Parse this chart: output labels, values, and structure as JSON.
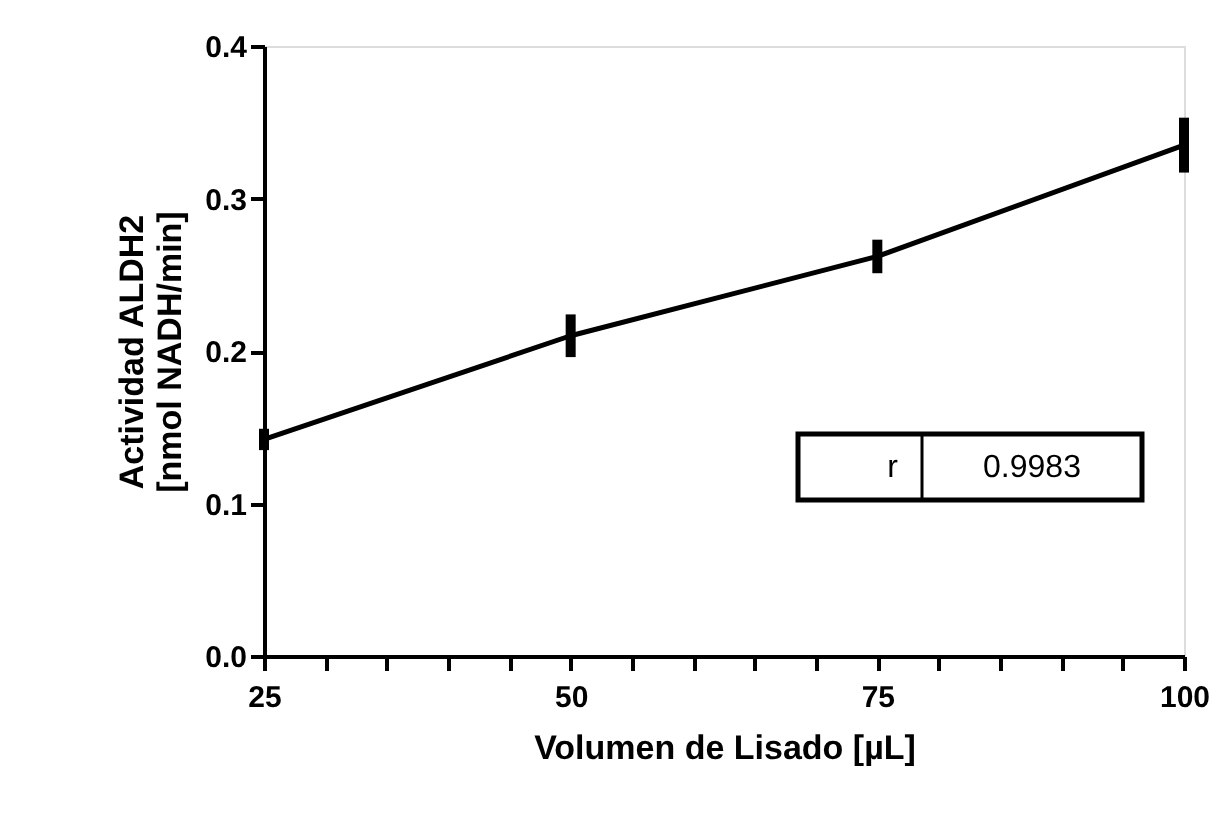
{
  "chart_data": {
    "type": "line",
    "x": [
      25,
      50,
      75,
      100
    ],
    "series": [
      {
        "color": "#000000",
        "values": [
          0.142,
          0.21,
          0.262,
          0.335
        ],
        "errors": [
          0.007,
          0.014,
          0.011,
          0.018
        ]
      }
    ],
    "xlabel": "Volumen de Lisado [µL]",
    "ylabel": "Actividad ALDH2\n[nmol NADH/min]",
    "xlim": [
      25,
      100
    ],
    "xticks": [
      25,
      {
        "value": 30,
        "label": null
      },
      {
        "value": 35,
        "label": null
      },
      {
        "value": 40,
        "label": null
      },
      {
        "value": 45,
        "label": null
      },
      50,
      {
        "value": 55,
        "label": null
      },
      {
        "value": 60,
        "label": null
      },
      {
        "value": 65,
        "label": null
      },
      {
        "value": 70,
        "label": null
      },
      75,
      {
        "value": 80,
        "label": null
      },
      {
        "value": 85,
        "label": null
      },
      {
        "value": 90,
        "label": null
      },
      {
        "value": 95,
        "label": null
      },
      100
    ],
    "ylim": [
      0,
      0.4
    ],
    "yticks": [
      {
        "value": 0,
        "label": "0.0"
      },
      0.1,
      0.2,
      0.3,
      0.4
    ],
    "annotations": [
      "r",
      "0.9983"
    ],
    "grid": false,
    "marker": "none",
    "line_style": "solid"
  }
}
